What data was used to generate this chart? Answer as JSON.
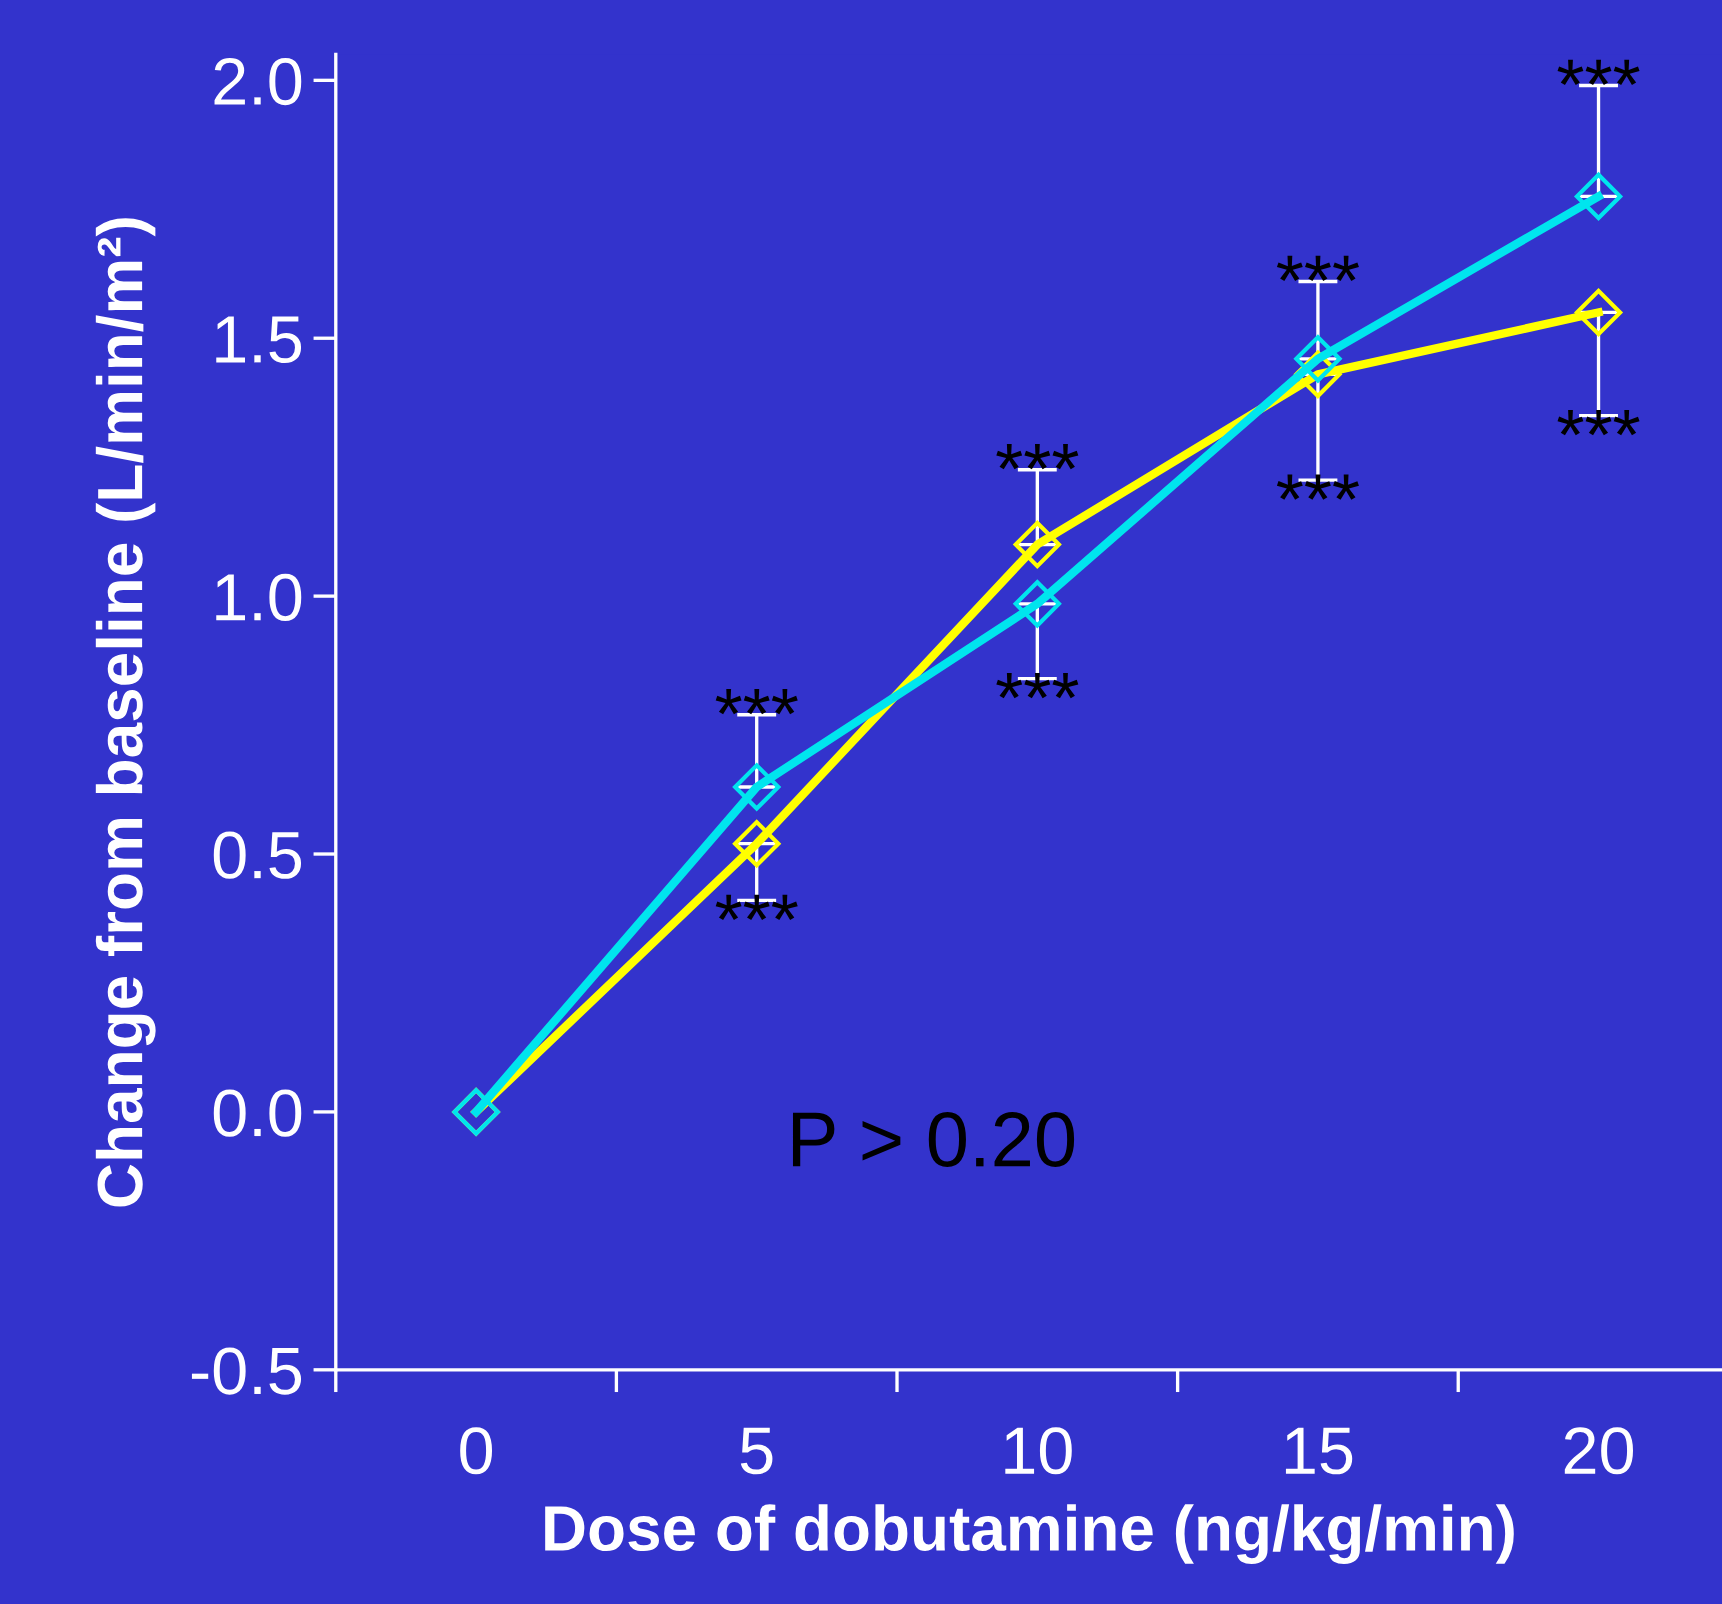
{
  "chart_data": {
    "type": "line",
    "xlabel": "Dose of dobutamine (ng/kg/min)",
    "ylabel": "Change from baseline (L/min/m²)",
    "x": [
      0,
      5,
      10,
      15,
      20
    ],
    "series": [
      {
        "color": "#ffff00",
        "values": [
          0,
          0.52,
          1.1,
          1.43,
          1.55
        ],
        "errors": [
          null,
          [
            0.41,
            0.52
          ],
          [
            1.1,
            1.245
          ],
          [
            1.225,
            1.43
          ],
          [
            1.35,
            1.55
          ]
        ]
      },
      {
        "color": "#00e5ee",
        "values": [
          0,
          0.63,
          0.985,
          1.46,
          1.775
        ],
        "errors": [
          null,
          [
            0.63,
            0.77
          ],
          [
            0.84,
            0.985
          ],
          [
            1.46,
            1.61
          ],
          [
            1.775,
            1.99
          ]
        ]
      }
    ],
    "xlim": [
      -2.5,
      22.2
    ],
    "ylim": [
      -0.5,
      2.05
    ],
    "xticks": [
      {
        "value": -2.5,
        "label": null
      },
      0,
      {
        "value": 2.5,
        "label": null
      },
      5,
      {
        "value": 7.5,
        "label": null
      },
      10,
      {
        "value": 12.5,
        "label": null
      },
      15,
      {
        "value": 17.5,
        "label": null
      },
      20
    ],
    "yticks": [
      {
        "value": -0.5,
        "label": "-0.5"
      },
      {
        "value": 0,
        "label": "0.0"
      },
      {
        "value": 0.5,
        "label": "0.5"
      },
      {
        "value": 1,
        "label": "1.0"
      },
      {
        "value": 1.5,
        "label": "1.5"
      },
      {
        "value": 2,
        "label": "2.0"
      }
    ],
    "marker": "diamond",
    "grid": false,
    "legend": false,
    "annotations": [
      {
        "text": "***",
        "x": 5,
        "y": 0.77
      },
      {
        "text": "***",
        "x": 5,
        "y": 0.41
      },
      {
        "text": "***",
        "x": 10,
        "y": 1.245
      },
      {
        "text": "***",
        "x": 10,
        "y": 0.84
      },
      {
        "text": "***",
        "x": 15,
        "y": 1.61
      },
      {
        "text": "***",
        "x": 15,
        "y": 1.225
      },
      {
        "text": "***",
        "x": 20,
        "y": 1.99
      },
      {
        "text": "***",
        "x": 20,
        "y": 1.35
      },
      "P > 0.20"
    ]
  }
}
